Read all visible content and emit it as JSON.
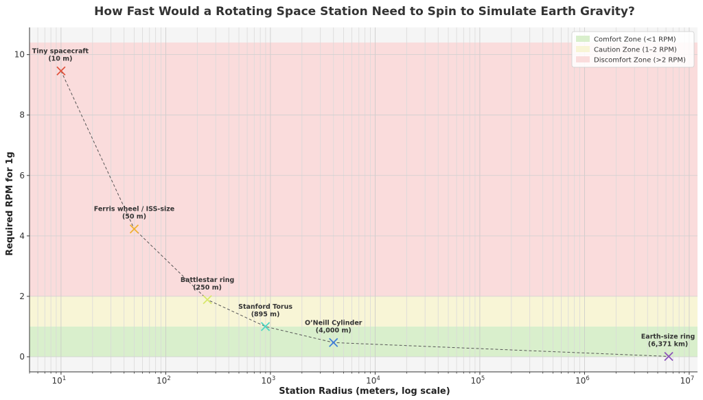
{
  "chart_data": {
    "type": "scatter",
    "title": "How Fast Would a Rotating Space Station Need to Spin to Simulate Earth Gravity?",
    "xlabel": "Station Radius (meters, log scale)",
    "ylabel": "Required RPM for 1g",
    "xscale": "log",
    "xlim": [
      5,
      12000000
    ],
    "ylim": [
      -0.5,
      10.9
    ],
    "xticks": [
      {
        "value": 10,
        "base": "10",
        "exp": "1"
      },
      {
        "value": 100,
        "base": "10",
        "exp": "2"
      },
      {
        "value": 1000,
        "base": "10",
        "exp": "3"
      },
      {
        "value": 10000,
        "base": "10",
        "exp": "4"
      },
      {
        "value": 100000,
        "base": "10",
        "exp": "5"
      },
      {
        "value": 1000000,
        "base": "10",
        "exp": "6"
      },
      {
        "value": 10000000,
        "base": "10",
        "exp": "7"
      }
    ],
    "yticks": [
      0,
      2,
      4,
      6,
      8,
      10
    ],
    "grid": true,
    "legend_position": "top-right",
    "zones": [
      {
        "label": "Comfort Zone (<1 RPM)",
        "from": 0,
        "to": 1,
        "color": "#d9efcc"
      },
      {
        "label": "Caution Zone (1–2 RPM)",
        "from": 1,
        "to": 2,
        "color": "#f8f5d6"
      },
      {
        "label": "Discomfort Zone (>2 RPM)",
        "from": 2,
        "to": 10.4,
        "color": "#fadcdc"
      }
    ],
    "points": [
      {
        "x": 10,
        "y": 9.46,
        "label_line1": "Tiny spacecraft",
        "label_line2": "(10 m)",
        "color": "#e0523c"
      },
      {
        "x": 50,
        "y": 4.23,
        "label_line1": "Ferris wheel / ISS-size",
        "label_line2": "(50 m)",
        "color": "#f0b030"
      },
      {
        "x": 250,
        "y": 1.89,
        "label_line1": "Battlestar ring",
        "label_line2": "(250 m)",
        "color": "#d8e86a"
      },
      {
        "x": 895,
        "y": 1.0,
        "label_line1": "Stanford Torus",
        "label_line2": "(895 m)",
        "color": "#4fd6c4"
      },
      {
        "x": 4000,
        "y": 0.47,
        "label_line1": "O’Neill Cylinder",
        "label_line2": "(4,000 m)",
        "color": "#3f7ed8"
      },
      {
        "x": 6371000,
        "y": 0.012,
        "label_line1": "Earth-size ring",
        "label_line2": "(6,371 km)",
        "color": "#8a52b8"
      }
    ]
  }
}
